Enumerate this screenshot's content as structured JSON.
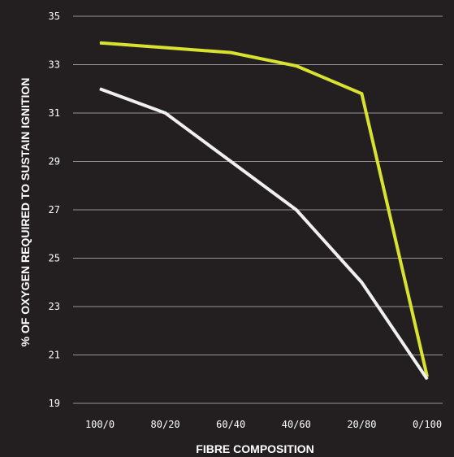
{
  "chart_data": {
    "type": "line",
    "title": "",
    "xlabel": "FIBRE COMPOSITION",
    "ylabel": "% OF OXYGEN REQUIRED TO SUSTAIN IGNITION",
    "categories": [
      "100/0",
      "80/20",
      "60/40",
      "40/60",
      "20/80",
      "0/100"
    ],
    "ylim": [
      19,
      35
    ],
    "yticks": [
      19,
      21,
      23,
      25,
      27,
      29,
      31,
      33,
      35
    ],
    "grid": true,
    "series": [
      {
        "color": "#d8e22f",
        "values": [
          33.9,
          33.7,
          33.5,
          32.95,
          31.8,
          20.1
        ]
      },
      {
        "color": "#f0f0f0",
        "values": [
          32.0,
          31.0,
          29.0,
          27.0,
          24.0,
          20.0
        ]
      }
    ]
  }
}
